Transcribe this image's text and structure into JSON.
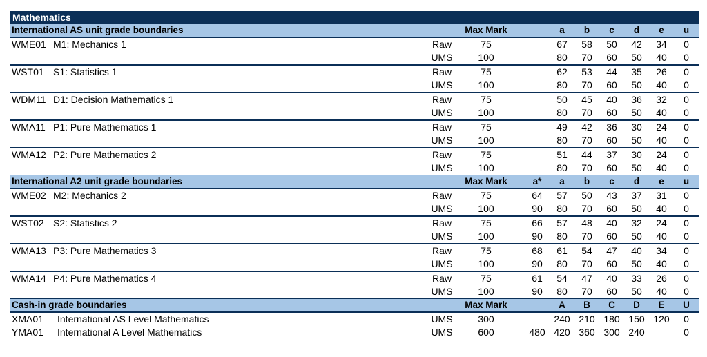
{
  "title": "Mathematics",
  "sections": [
    {
      "heading": "International AS unit grade boundaries",
      "max_mark_label": "Max Mark",
      "grades": [
        "",
        "a",
        "b",
        "c",
        "d",
        "e",
        "u"
      ],
      "units": [
        {
          "code": "WME01",
          "name": "M1: Mechanics 1",
          "rows": [
            {
              "type": "Raw",
              "max": "75",
              "vals": [
                "",
                "67",
                "58",
                "50",
                "42",
                "34",
                "0"
              ]
            },
            {
              "type": "UMS",
              "max": "100",
              "vals": [
                "",
                "80",
                "70",
                "60",
                "50",
                "40",
                "0"
              ]
            }
          ]
        },
        {
          "code": "WST01",
          "name": "S1: Statistics 1",
          "rows": [
            {
              "type": "Raw",
              "max": "75",
              "vals": [
                "",
                "62",
                "53",
                "44",
                "35",
                "26",
                "0"
              ]
            },
            {
              "type": "UMS",
              "max": "100",
              "vals": [
                "",
                "80",
                "70",
                "60",
                "50",
                "40",
                "0"
              ]
            }
          ]
        },
        {
          "code": "WDM11",
          "name": "D1: Decision Mathematics 1",
          "rows": [
            {
              "type": "Raw",
              "max": "75",
              "vals": [
                "",
                "50",
                "45",
                "40",
                "36",
                "32",
                "0"
              ]
            },
            {
              "type": "UMS",
              "max": "100",
              "vals": [
                "",
                "80",
                "70",
                "60",
                "50",
                "40",
                "0"
              ]
            }
          ]
        },
        {
          "code": "WMA11",
          "name": "P1: Pure Mathematics 1",
          "rows": [
            {
              "type": "Raw",
              "max": "75",
              "vals": [
                "",
                "49",
                "42",
                "36",
                "30",
                "24",
                "0"
              ]
            },
            {
              "type": "UMS",
              "max": "100",
              "vals": [
                "",
                "80",
                "70",
                "60",
                "50",
                "40",
                "0"
              ]
            }
          ]
        },
        {
          "code": "WMA12",
          "name": "P2: Pure Mathematics 2",
          "rows": [
            {
              "type": "Raw",
              "max": "75",
              "vals": [
                "",
                "51",
                "44",
                "37",
                "30",
                "24",
                "0"
              ]
            },
            {
              "type": "UMS",
              "max": "100",
              "vals": [
                "",
                "80",
                "70",
                "60",
                "50",
                "40",
                "0"
              ]
            }
          ]
        }
      ]
    },
    {
      "heading": "International A2 unit grade boundaries",
      "max_mark_label": "Max Mark",
      "grades": [
        "a*",
        "a",
        "b",
        "c",
        "d",
        "e",
        "u"
      ],
      "units": [
        {
          "code": "WME02",
          "name": "M2: Mechanics 2",
          "rows": [
            {
              "type": "Raw",
              "max": "75",
              "vals": [
                "64",
                "57",
                "50",
                "43",
                "37",
                "31",
                "0"
              ]
            },
            {
              "type": "UMS",
              "max": "100",
              "vals": [
                "90",
                "80",
                "70",
                "60",
                "50",
                "40",
                "0"
              ]
            }
          ]
        },
        {
          "code": "WST02",
          "name": "S2: Statistics 2",
          "rows": [
            {
              "type": "Raw",
              "max": "75",
              "vals": [
                "66",
                "57",
                "48",
                "40",
                "32",
                "24",
                "0"
              ]
            },
            {
              "type": "UMS",
              "max": "100",
              "vals": [
                "90",
                "80",
                "70",
                "60",
                "50",
                "40",
                "0"
              ]
            }
          ]
        },
        {
          "code": "WMA13",
          "name": "P3: Pure Mathematics 3",
          "rows": [
            {
              "type": "Raw",
              "max": "75",
              "vals": [
                "68",
                "61",
                "54",
                "47",
                "40",
                "34",
                "0"
              ]
            },
            {
              "type": "UMS",
              "max": "100",
              "vals": [
                "90",
                "80",
                "70",
                "60",
                "50",
                "40",
                "0"
              ]
            }
          ]
        },
        {
          "code": "WMA14",
          "name": "P4: Pure Mathematics 4",
          "rows": [
            {
              "type": "Raw",
              "max": "75",
              "vals": [
                "61",
                "54",
                "47",
                "40",
                "33",
                "26",
                "0"
              ]
            },
            {
              "type": "UMS",
              "max": "100",
              "vals": [
                "90",
                "80",
                "70",
                "60",
                "50",
                "40",
                "0"
              ]
            }
          ]
        }
      ]
    },
    {
      "heading": "Cash-in grade boundaries",
      "max_mark_label": "Max Mark",
      "grades": [
        "",
        "A",
        "B",
        "C",
        "D",
        "E",
        "U"
      ],
      "cashin": [
        {
          "code": "XMA01",
          "name": "International AS Level Mathematics",
          "type": "UMS",
          "max": "300",
          "vals": [
            "",
            "240",
            "210",
            "180",
            "150",
            "120",
            "0"
          ]
        },
        {
          "code": "YMA01",
          "name": "International A Level Mathematics",
          "type": "UMS",
          "max": "600",
          "vals": [
            "480",
            "420",
            "360",
            "300",
            "240",
            "",
            "0"
          ]
        }
      ]
    }
  ]
}
